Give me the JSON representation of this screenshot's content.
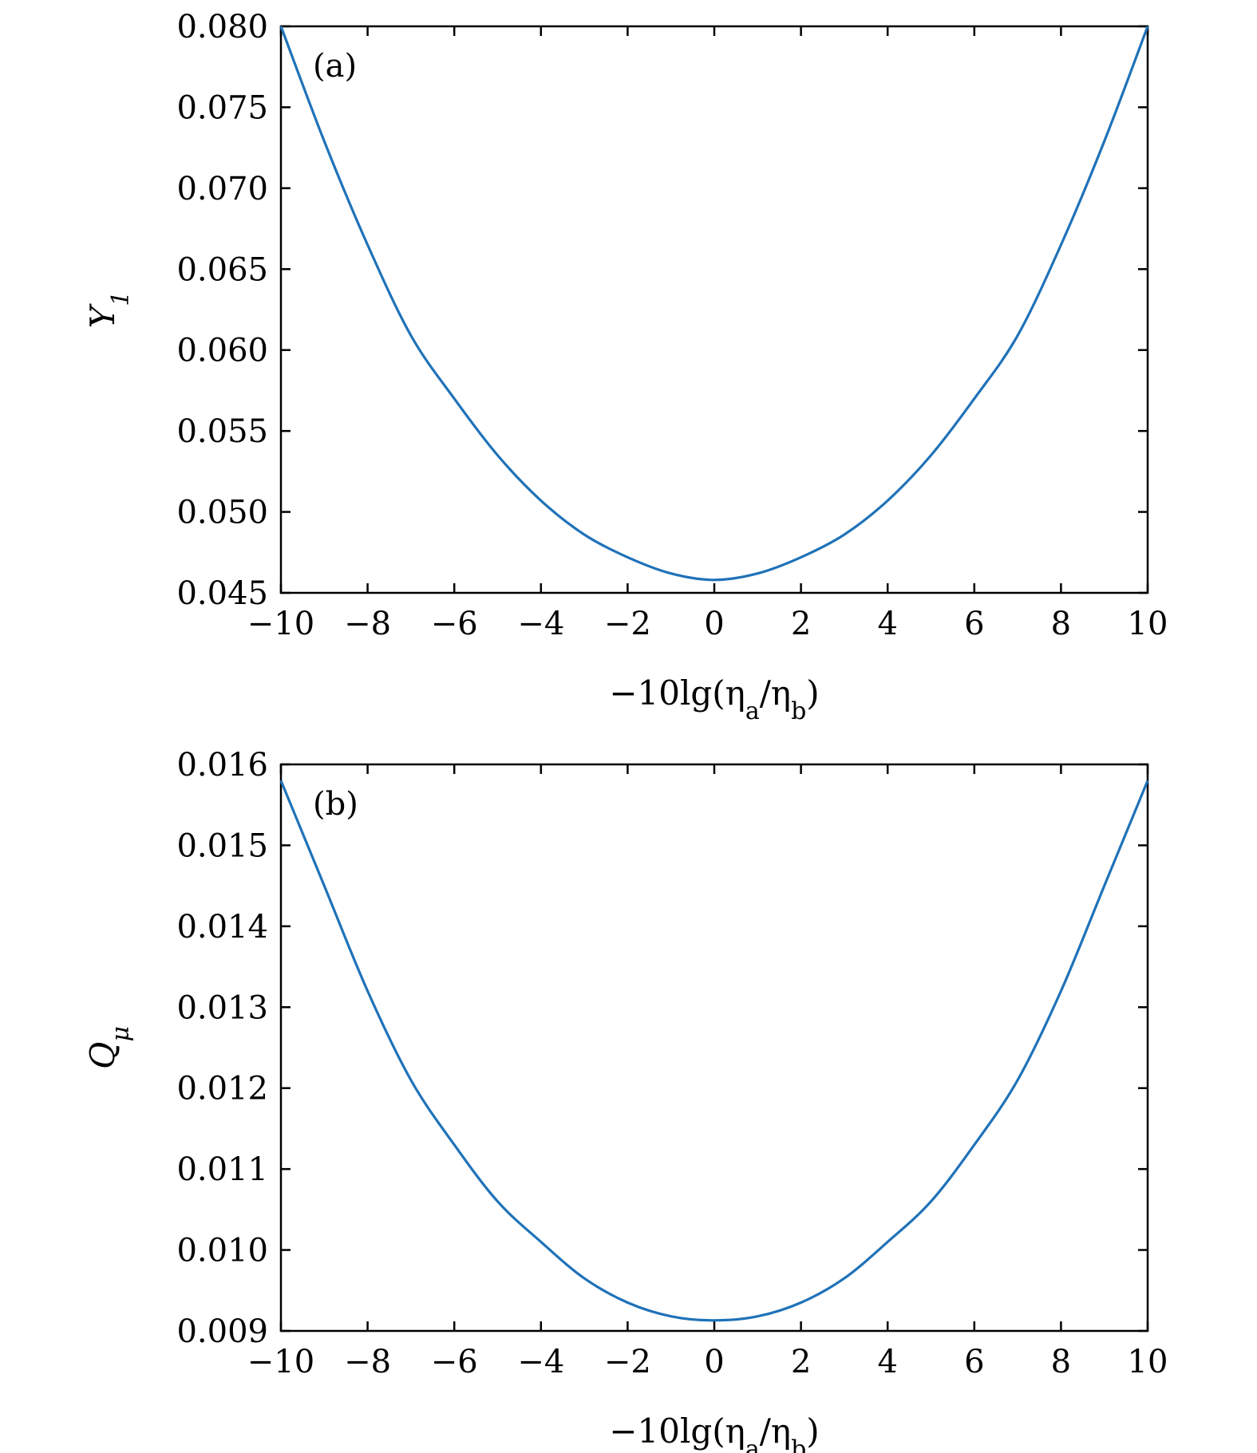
{
  "chart_data": [
    {
      "type": "line",
      "panel_label": "(a)",
      "xlabel": "−10lg(η_a/η_b)",
      "ylabel": "Y_1",
      "xlim": [
        -10,
        10
      ],
      "ylim": [
        0.045,
        0.08
      ],
      "x_ticks": [
        "−10",
        "−8",
        "−6",
        "−4",
        "−2",
        "0",
        "2",
        "4",
        "6",
        "8",
        "10"
      ],
      "y_ticks": [
        "0.045",
        "0.050",
        "0.055",
        "0.060",
        "0.065",
        "0.070",
        "0.075",
        "0.080"
      ],
      "series": [
        {
          "color": "#1f72b8",
          "x": [
            -10,
            -9,
            -8,
            -7,
            -6,
            -5,
            -4,
            -3,
            -2,
            -1,
            0,
            1,
            2,
            3,
            4,
            5,
            6,
            7,
            8,
            9,
            10
          ],
          "y": [
            0.08,
            0.0729,
            0.0665,
            0.0609,
            0.057,
            0.0535,
            0.0507,
            0.0486,
            0.0472,
            0.0462,
            0.0458,
            0.0462,
            0.0472,
            0.0486,
            0.0507,
            0.0535,
            0.057,
            0.0609,
            0.0665,
            0.0729,
            0.08
          ]
        }
      ]
    },
    {
      "type": "line",
      "panel_label": "(b)",
      "xlabel": "−10lg(η_a/η_b)",
      "ylabel": "Q_μ",
      "xlim": [
        -10,
        10
      ],
      "ylim": [
        0.009,
        0.016
      ],
      "x_ticks": [
        "−10",
        "−8",
        "−6",
        "−4",
        "−2",
        "0",
        "2",
        "4",
        "6",
        "8",
        "10"
      ],
      "y_ticks": [
        "0.009",
        "0.010",
        "0.011",
        "0.012",
        "0.013",
        "0.014",
        "0.015",
        "0.016"
      ],
      "series": [
        {
          "color": "#1f72b8",
          "x": [
            -10,
            -9,
            -8,
            -7,
            -6,
            -5,
            -4,
            -3,
            -2,
            -1,
            0,
            1,
            2,
            3,
            4,
            5,
            6,
            7,
            8,
            9,
            10
          ],
          "y": [
            0.0158,
            0.0145,
            0.0132,
            0.0121,
            0.0113,
            0.0106,
            0.0101,
            0.00965,
            0.00935,
            0.00918,
            0.00913,
            0.00918,
            0.00935,
            0.00965,
            0.0101,
            0.0106,
            0.0113,
            0.0121,
            0.0132,
            0.0145,
            0.0158
          ]
        }
      ]
    }
  ]
}
